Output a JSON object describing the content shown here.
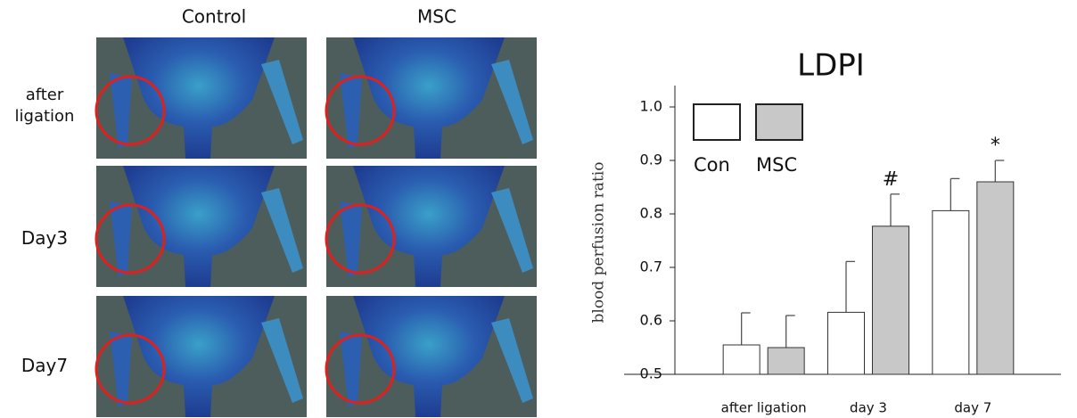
{
  "images": {
    "columns": [
      "Control",
      "MSC"
    ],
    "rows": [
      "after ligation",
      "Day3",
      "Day7"
    ]
  },
  "chart_data": {
    "type": "bar",
    "title": "LDPI",
    "y_label": "blood perfusion ratio",
    "categories": [
      "after ligation",
      "day 3",
      "day 7"
    ],
    "series": [
      {
        "name": "Con",
        "color": "#ffffff",
        "values": [
          0.555,
          0.616,
          0.806
        ],
        "errors": [
          0.06,
          0.095,
          0.06
        ]
      },
      {
        "name": "MSC",
        "color": "#c8c8c8",
        "values": [
          0.55,
          0.777,
          0.86
        ],
        "errors": [
          0.06,
          0.06,
          0.04
        ]
      }
    ],
    "annotations": [
      {
        "series": 1,
        "category": 1,
        "text": "#"
      },
      {
        "series": 1,
        "category": 2,
        "text": "*"
      }
    ],
    "ylim": [
      0.5,
      1.04
    ],
    "yticks": [
      0.5,
      0.6,
      0.7,
      0.8,
      0.9,
      {
        "value": 1,
        "label": "1.0"
      }
    ],
    "legend": "top-left",
    "grid": false
  }
}
